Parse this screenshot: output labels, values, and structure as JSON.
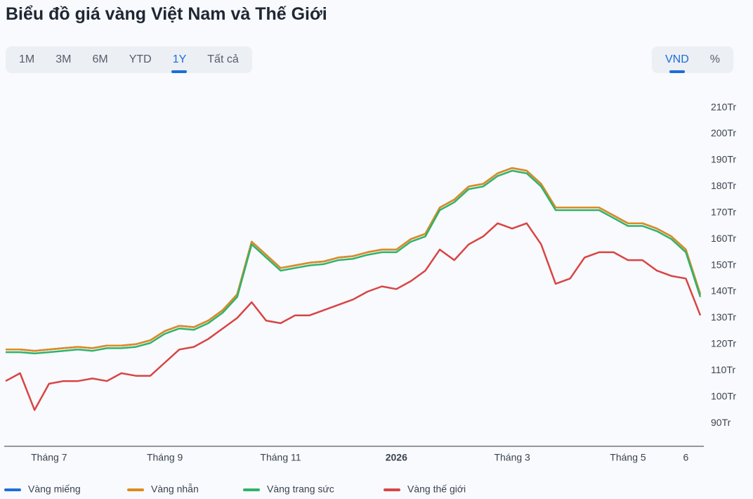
{
  "title": "Biểu đồ giá vàng Việt Nam và Thế Giới",
  "range_buttons": [
    "1M",
    "3M",
    "6M",
    "YTD",
    "1Y",
    "Tất cả"
  ],
  "active_range": 4,
  "unit_buttons": [
    "VND",
    "%"
  ],
  "active_unit": 0,
  "chart_data": {
    "type": "line",
    "categories": [
      null,
      null,
      null,
      "Tháng 7",
      null,
      null,
      null,
      null,
      null,
      null,
      null,
      "Tháng 9",
      null,
      null,
      null,
      null,
      null,
      null,
      null,
      "Tháng 11",
      null,
      null,
      null,
      null,
      null,
      null,
      null,
      "2026",
      null,
      null,
      null,
      null,
      null,
      null,
      null,
      "Tháng 3",
      null,
      null,
      null,
      null,
      null,
      null,
      null,
      "Tháng 5",
      null,
      null,
      null,
      "6",
      null
    ],
    "series": [
      {
        "name": "Vàng miếng",
        "color": "#1f6fd1",
        "values": [
          118,
          118,
          117.5,
          118,
          118.5,
          119,
          118.5,
          119.5,
          119.5,
          120,
          121.5,
          125,
          127,
          126.5,
          129,
          133,
          139,
          159,
          154,
          149,
          150,
          151,
          151.5,
          153,
          153.5,
          155,
          156,
          156,
          160,
          162,
          172,
          175,
          180,
          181,
          185,
          187,
          186,
          181,
          172,
          172,
          172,
          172,
          169,
          166,
          166,
          164,
          161,
          156,
          139
        ]
      },
      {
        "name": "Vàng nhẫn",
        "color": "#e08a1e",
        "values": [
          118,
          118,
          117.5,
          118,
          118.5,
          119,
          118.5,
          119.5,
          119.5,
          120,
          121.5,
          125,
          127,
          126.5,
          129,
          133,
          139,
          159,
          154,
          149,
          150,
          151,
          151.5,
          153,
          153.5,
          155,
          156,
          156,
          160,
          162,
          172,
          175,
          180,
          181,
          185,
          187,
          186,
          181,
          172,
          172,
          172,
          172,
          169,
          166,
          166,
          164,
          161,
          156,
          139
        ]
      },
      {
        "name": "Vàng trang sức",
        "color": "#2fb36a",
        "values": [
          117,
          117,
          116.5,
          117,
          117.5,
          118,
          117.5,
          118.5,
          118.5,
          119,
          120.5,
          124,
          126,
          125.5,
          128,
          132,
          138,
          158,
          153,
          148,
          149,
          150,
          150.5,
          152,
          152.5,
          154,
          155,
          155,
          159,
          161,
          171,
          174,
          179,
          180,
          184,
          186,
          185,
          180,
          171,
          171,
          171,
          171,
          168,
          165,
          165,
          163,
          160,
          155,
          138
        ]
      },
      {
        "name": "Vàng thế giới",
        "color": "#d94444",
        "values": [
          106,
          109,
          95,
          105,
          106,
          106,
          107,
          106,
          109,
          108,
          108,
          113,
          118,
          119,
          122,
          126,
          130,
          136,
          129,
          128,
          131,
          131,
          133,
          135,
          137,
          140,
          142,
          141,
          144,
          148,
          156,
          152,
          158,
          161,
          166,
          164,
          166,
          158,
          143,
          145,
          153,
          155,
          155,
          152,
          152,
          148,
          146,
          145,
          131
        ]
      }
    ],
    "ylim": [
      81.2,
      213.5
    ],
    "yticks": [
      {
        "value": 90,
        "label": "90Tr"
      },
      {
        "value": 100,
        "label": "100Tr"
      },
      {
        "value": 110,
        "label": "110Tr"
      },
      {
        "value": 120,
        "label": "120Tr"
      },
      {
        "value": 130,
        "label": "130Tr"
      },
      {
        "value": 140,
        "label": "140Tr"
      },
      {
        "value": 150,
        "label": "150Tr"
      },
      {
        "value": 160,
        "label": "160Tr"
      },
      {
        "value": 170,
        "label": "170Tr"
      },
      {
        "value": 180,
        "label": "180Tr"
      },
      {
        "value": 190,
        "label": "190Tr"
      },
      {
        "value": 200,
        "label": "200Tr"
      },
      {
        "value": 210,
        "label": "210Tr"
      }
    ],
    "grid": false,
    "legend": "bottom"
  }
}
